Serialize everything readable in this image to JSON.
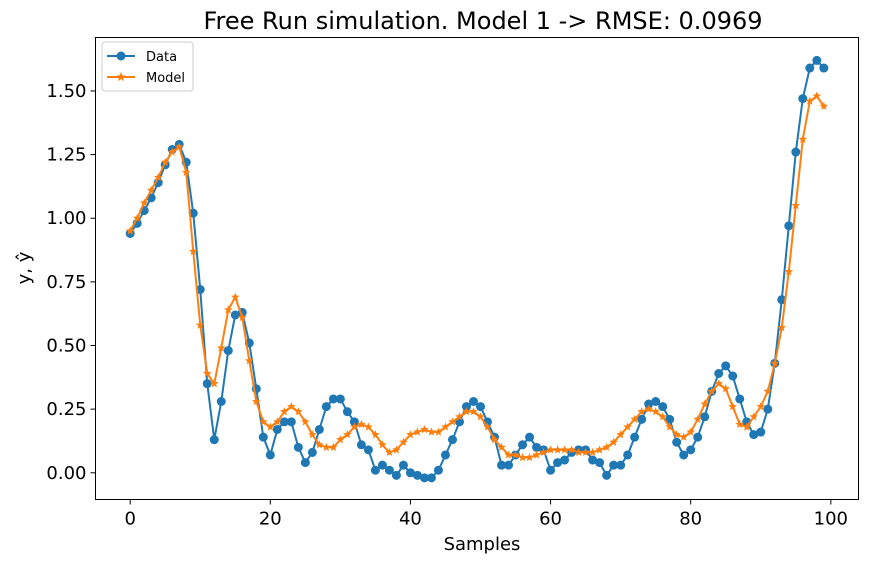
{
  "chart_data": {
    "type": "line",
    "title": "Free Run simulation. Model 1 -> RMSE: 0.0969",
    "xlabel": "Samples",
    "ylabel": "y, ŷ",
    "xlim": [
      -4.95,
      103.95
    ],
    "ylim": [
      -0.105,
      1.71
    ],
    "xticks": [
      "0",
      "20",
      "40",
      "60",
      "80",
      "100"
    ],
    "yticks": [
      "0.00",
      "0.25",
      "0.50",
      "0.75",
      "1.00",
      "1.25",
      "1.50"
    ],
    "grid": false,
    "legend_position": "top-left",
    "series": [
      {
        "name": "Data",
        "color": "#1f77b4",
        "marker": "circle",
        "values": [
          0.94,
          0.98,
          1.03,
          1.08,
          1.14,
          1.21,
          1.27,
          1.29,
          1.22,
          1.02,
          0.72,
          0.35,
          0.13,
          0.28,
          0.48,
          0.62,
          0.63,
          0.51,
          0.33,
          0.14,
          0.07,
          0.17,
          0.2,
          0.2,
          0.1,
          0.04,
          0.08,
          0.17,
          0.26,
          0.29,
          0.29,
          0.24,
          0.2,
          0.11,
          0.09,
          0.01,
          0.03,
          0.01,
          -0.01,
          0.03,
          0.0,
          -0.01,
          -0.02,
          -0.02,
          0.01,
          0.07,
          0.13,
          0.2,
          0.26,
          0.28,
          0.26,
          0.2,
          0.14,
          0.03,
          0.03,
          0.07,
          0.11,
          0.14,
          0.1,
          0.09,
          0.01,
          0.04,
          0.05,
          0.08,
          0.09,
          0.09,
          0.05,
          0.04,
          -0.01,
          0.03,
          0.03,
          0.07,
          0.14,
          0.21,
          0.27,
          0.28,
          0.26,
          0.21,
          0.12,
          0.07,
          0.09,
          0.14,
          0.22,
          0.32,
          0.39,
          0.42,
          0.38,
          0.29,
          0.2,
          0.15,
          0.16,
          0.25,
          0.43,
          0.68,
          0.97,
          1.26,
          1.47,
          1.59,
          1.62,
          1.59
        ]
      },
      {
        "name": "Model",
        "color": "#ff7f0e",
        "marker": "star",
        "values": [
          0.95,
          1.0,
          1.06,
          1.11,
          1.16,
          1.22,
          1.26,
          1.28,
          1.18,
          0.87,
          0.58,
          0.39,
          0.35,
          0.49,
          0.64,
          0.69,
          0.61,
          0.44,
          0.28,
          0.2,
          0.18,
          0.2,
          0.24,
          0.26,
          0.24,
          0.2,
          0.15,
          0.11,
          0.1,
          0.1,
          0.13,
          0.15,
          0.18,
          0.19,
          0.18,
          0.15,
          0.11,
          0.08,
          0.09,
          0.12,
          0.15,
          0.16,
          0.17,
          0.16,
          0.16,
          0.18,
          0.2,
          0.22,
          0.24,
          0.24,
          0.22,
          0.18,
          0.13,
          0.1,
          0.07,
          0.07,
          0.06,
          0.06,
          0.07,
          0.08,
          0.09,
          0.09,
          0.09,
          0.09,
          0.08,
          0.08,
          0.08,
          0.09,
          0.1,
          0.12,
          0.15,
          0.18,
          0.21,
          0.24,
          0.25,
          0.24,
          0.22,
          0.18,
          0.15,
          0.14,
          0.16,
          0.21,
          0.27,
          0.32,
          0.35,
          0.33,
          0.26,
          0.19,
          0.18,
          0.22,
          0.26,
          0.32,
          0.43,
          0.57,
          0.79,
          1.05,
          1.31,
          1.46,
          1.48,
          1.44
        ]
      }
    ]
  }
}
